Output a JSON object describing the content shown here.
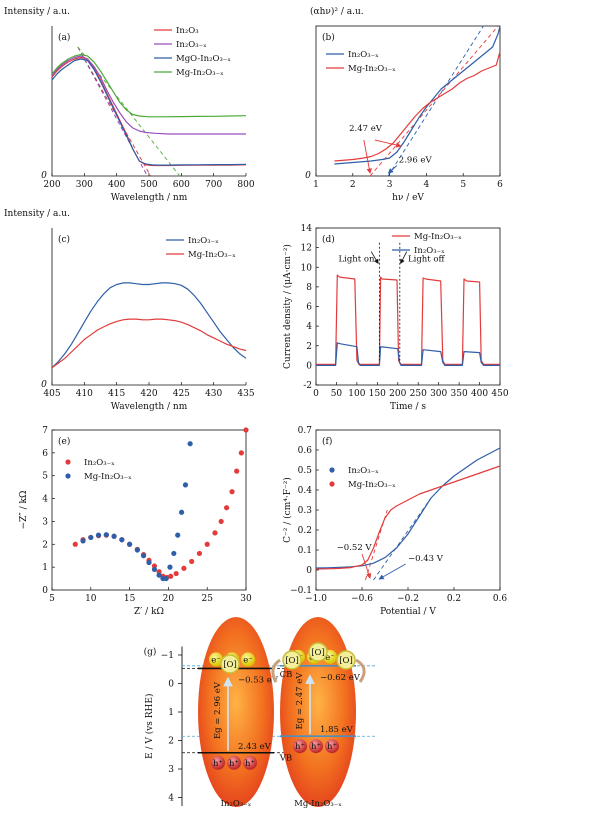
{
  "chart_data": [
    {
      "id": "a",
      "panel_label": "(a)",
      "type": "line",
      "ylabel": "Intensity / a.u.",
      "xlabel": "Wavelength / nm",
      "xlim": [
        200,
        800
      ],
      "xticks": [
        "200",
        "300",
        "400",
        "500",
        "600",
        "700",
        "800"
      ],
      "yticks": [
        "0"
      ],
      "legend_position": "top-right",
      "series": [
        {
          "name": "In2O3",
          "color": "#e33b3b",
          "x": [
            200,
            215,
            230,
            250,
            270,
            290,
            310,
            330,
            350,
            370,
            390,
            410,
            430,
            450,
            470,
            490,
            510,
            530,
            560,
            600,
            650,
            700,
            750,
            800
          ],
          "y": [
            0.66,
            0.7,
            0.73,
            0.76,
            0.78,
            0.79,
            0.78,
            0.72,
            0.64,
            0.55,
            0.46,
            0.37,
            0.28,
            0.18,
            0.1,
            0.075,
            0.07,
            0.07,
            0.07,
            0.071,
            0.072,
            0.072,
            0.073,
            0.075
          ]
        },
        {
          "name": "In2O3-x",
          "color": "#9b4fbf",
          "x": [
            200,
            215,
            230,
            250,
            270,
            290,
            310,
            330,
            350,
            370,
            390,
            410,
            430,
            450,
            470,
            490,
            520,
            560,
            600,
            650,
            700,
            750,
            800
          ],
          "y": [
            0.67,
            0.71,
            0.74,
            0.77,
            0.79,
            0.8,
            0.78,
            0.73,
            0.66,
            0.57,
            0.49,
            0.42,
            0.36,
            0.32,
            0.3,
            0.29,
            0.285,
            0.28,
            0.28,
            0.28,
            0.28,
            0.28,
            0.28
          ]
        },
        {
          "name": "MgO-In2O3-x",
          "color": "#2e5fa8",
          "x": [
            200,
            215,
            230,
            250,
            270,
            290,
            310,
            330,
            350,
            370,
            390,
            410,
            430,
            450,
            470,
            490,
            510,
            530,
            560,
            600,
            650,
            700,
            750,
            800
          ],
          "y": [
            0.64,
            0.68,
            0.71,
            0.74,
            0.77,
            0.78,
            0.77,
            0.71,
            0.63,
            0.54,
            0.45,
            0.36,
            0.27,
            0.18,
            0.1,
            0.08,
            0.074,
            0.073,
            0.073,
            0.074,
            0.075,
            0.076,
            0.076,
            0.077
          ]
        },
        {
          "name": "Mg-In2O3-x",
          "color": "#4faa3a",
          "x": [
            200,
            215,
            230,
            250,
            270,
            290,
            310,
            330,
            350,
            370,
            390,
            410,
            430,
            450,
            470,
            500,
            540,
            600,
            650,
            700,
            750,
            800
          ],
          "y": [
            0.68,
            0.72,
            0.75,
            0.78,
            0.8,
            0.81,
            0.8,
            0.76,
            0.7,
            0.63,
            0.56,
            0.49,
            0.44,
            0.41,
            0.4,
            0.395,
            0.395,
            0.396,
            0.397,
            0.398,
            0.4,
            0.402
          ]
        }
      ],
      "tangents": [
        {
          "color": "#c03a3a",
          "x": [
            280,
            505
          ],
          "y": [
            0.86,
            0.0
          ]
        },
        {
          "color": "#8a3fae",
          "x": [
            280,
            495
          ],
          "y": [
            0.86,
            0.0
          ]
        },
        {
          "color": "#4faa3a",
          "x": [
            280,
            595
          ],
          "y": [
            0.86,
            0.0
          ]
        }
      ]
    },
    {
      "id": "b",
      "panel_label": "(b)",
      "type": "line",
      "ylabel": "(αhν)² / a.u.",
      "xlabel": "hν / eV",
      "xlim": [
        1,
        6
      ],
      "xticks": [
        "1",
        "2",
        "3",
        "4",
        "5",
        "6"
      ],
      "yticks": [
        "0"
      ],
      "legend_position": "top-left",
      "series": [
        {
          "name": "In2O3-x",
          "color": "#2e5fa8",
          "x": [
            1.5,
            2.0,
            2.5,
            2.8,
            3.0,
            3.2,
            3.4,
            3.6,
            3.8,
            4.0,
            4.2,
            4.4,
            4.6,
            4.8,
            5.0,
            5.2,
            5.4,
            5.6,
            5.8,
            5.95,
            6.0
          ],
          "y": [
            0.08,
            0.09,
            0.1,
            0.11,
            0.12,
            0.16,
            0.23,
            0.31,
            0.39,
            0.46,
            0.52,
            0.58,
            0.62,
            0.66,
            0.7,
            0.74,
            0.78,
            0.82,
            0.86,
            0.95,
            1.0
          ]
        },
        {
          "name": "Mg-In2O3-x",
          "color": "#e33b3b",
          "x": [
            1.5,
            2.0,
            2.3,
            2.5,
            2.7,
            2.9,
            3.1,
            3.3,
            3.5,
            3.7,
            3.9,
            4.1,
            4.3,
            4.5,
            4.7,
            4.9,
            5.1,
            5.3,
            5.5,
            5.7,
            5.9,
            6.0
          ],
          "y": [
            0.1,
            0.11,
            0.12,
            0.13,
            0.15,
            0.18,
            0.22,
            0.28,
            0.34,
            0.4,
            0.45,
            0.49,
            0.52,
            0.55,
            0.58,
            0.62,
            0.65,
            0.67,
            0.7,
            0.72,
            0.74,
            0.83
          ]
        }
      ],
      "tangents": [
        {
          "color": "#2e5fa8",
          "x": [
            2.96,
            5.55
          ],
          "y": [
            0.0,
            1.0
          ]
        },
        {
          "color": "#e33b3b",
          "x": [
            2.47,
            5.95
          ],
          "y": [
            0.0,
            1.0
          ]
        }
      ],
      "annotations": [
        "2.47 eV",
        "2.96 eV"
      ]
    },
    {
      "id": "c",
      "panel_label": "(c)",
      "type": "line",
      "ylabel": "Intensity / a.u.",
      "xlabel": "Wavelength / nm",
      "xlim": [
        405,
        435
      ],
      "xticks": [
        "405",
        "410",
        "415",
        "420",
        "425",
        "430",
        "435"
      ],
      "yticks": [
        "0"
      ],
      "legend_position": "top-right",
      "series": [
        {
          "name": "In2O3-x",
          "color": "#2e5fa8",
          "x": [
            405,
            406,
            407,
            408,
            409,
            410,
            411,
            412,
            413,
            414,
            415,
            416,
            417,
            418,
            419,
            420,
            421,
            422,
            423,
            424,
            425,
            426,
            427,
            428,
            429,
            430,
            431,
            432,
            433,
            434,
            435
          ],
          "y": [
            0.11,
            0.15,
            0.2,
            0.26,
            0.33,
            0.4,
            0.47,
            0.53,
            0.58,
            0.62,
            0.64,
            0.65,
            0.65,
            0.645,
            0.64,
            0.64,
            0.645,
            0.65,
            0.65,
            0.645,
            0.635,
            0.61,
            0.57,
            0.52,
            0.46,
            0.4,
            0.34,
            0.29,
            0.24,
            0.2,
            0.17
          ]
        },
        {
          "name": "Mg-In2O3-x",
          "color": "#e33b3b",
          "x": [
            405,
            406,
            407,
            408,
            409,
            410,
            411,
            412,
            413,
            414,
            415,
            416,
            417,
            418,
            419,
            420,
            421,
            422,
            423,
            424,
            425,
            426,
            427,
            428,
            429,
            430,
            431,
            432,
            433,
            434,
            435
          ],
          "y": [
            0.11,
            0.14,
            0.17,
            0.21,
            0.25,
            0.29,
            0.32,
            0.35,
            0.37,
            0.39,
            0.405,
            0.415,
            0.42,
            0.42,
            0.415,
            0.415,
            0.42,
            0.42,
            0.415,
            0.41,
            0.4,
            0.385,
            0.365,
            0.345,
            0.32,
            0.3,
            0.28,
            0.26,
            0.245,
            0.23,
            0.22
          ]
        }
      ]
    },
    {
      "id": "d",
      "panel_label": "(d)",
      "type": "line",
      "ylabel": "Current density / (μA·cm⁻²)",
      "xlabel": "Time / s",
      "xlim": [
        0,
        450
      ],
      "ylim": [
        -2,
        14
      ],
      "xticks": [
        "0",
        "50",
        "100",
        "150",
        "200",
        "250",
        "300",
        "350",
        "400",
        "450"
      ],
      "yticks": [
        "-2",
        "0",
        "2",
        "4",
        "6",
        "8",
        "10",
        "12",
        "14"
      ],
      "legend_position": "top-right",
      "series": [
        {
          "name": "Mg-In2O3-x",
          "color": "#e33b3b",
          "x": [
            0,
            48,
            52,
            58,
            95,
            100,
            105,
            155,
            158,
            162,
            198,
            202,
            208,
            258,
            262,
            268,
            305,
            310,
            315,
            358,
            362,
            368,
            400,
            404,
            410,
            450
          ],
          "y": [
            0.1,
            0.1,
            9.2,
            9.0,
            8.8,
            0.5,
            0.1,
            0.1,
            9.0,
            8.8,
            8.7,
            0.5,
            0.1,
            0.1,
            8.9,
            8.8,
            8.6,
            0.5,
            0.1,
            0.1,
            8.8,
            8.6,
            8.5,
            0.5,
            0.1,
            0.1
          ]
        },
        {
          "name": "In2O3-x",
          "color": "#2e5fa8",
          "x": [
            0,
            48,
            52,
            60,
            100,
            104,
            108,
            155,
            158,
            200,
            204,
            208,
            258,
            262,
            305,
            310,
            315,
            358,
            362,
            400,
            404,
            410,
            450
          ],
          "y": [
            0.0,
            0.0,
            2.3,
            2.2,
            1.9,
            0.3,
            0.0,
            0.0,
            1.9,
            1.7,
            0.3,
            0.0,
            0.0,
            1.6,
            1.4,
            0.3,
            0.0,
            0.0,
            1.4,
            1.3,
            0.3,
            0.0,
            0.0
          ]
        }
      ],
      "annotations": [
        "Light on",
        "Light off"
      ]
    },
    {
      "id": "e",
      "panel_label": "(e)",
      "type": "scatter",
      "ylabel": "−Z″ / kΩ",
      "xlabel": "Z′ / kΩ",
      "xlim": [
        5,
        30
      ],
      "ylim": [
        0,
        7
      ],
      "xticks": [
        "5",
        "10",
        "15",
        "20",
        "25",
        "30"
      ],
      "yticks": [
        "0",
        "1",
        "2",
        "3",
        "4",
        "5",
        "6",
        "7"
      ],
      "legend_position": "top-left",
      "series": [
        {
          "name": "In2O3-x",
          "color": "#e33b3b",
          "x": [
            8.0,
            9.0,
            10.0,
            11.0,
            12.0,
            13.0,
            14.0,
            15.0,
            16.0,
            16.8,
            17.5,
            18.2,
            18.8,
            19.3,
            19.8,
            20.3,
            21.0,
            22.0,
            23.0,
            24.0,
            25.0,
            26.0,
            26.8,
            27.5,
            28.2,
            28.8,
            29.4,
            30.0
          ],
          "y": [
            2.0,
            2.2,
            2.3,
            2.38,
            2.4,
            2.35,
            2.2,
            2.0,
            1.78,
            1.55,
            1.3,
            1.05,
            0.8,
            0.6,
            0.55,
            0.6,
            0.72,
            0.95,
            1.25,
            1.6,
            2.0,
            2.5,
            3.0,
            3.6,
            4.3,
            5.2,
            6.0,
            7.0
          ]
        },
        {
          "name": "Mg-In2O3-x",
          "color": "#2e5fa8",
          "x": [
            9.0,
            10.0,
            11.0,
            12.0,
            13.0,
            14.0,
            15.0,
            16.0,
            16.8,
            17.5,
            18.2,
            18.8,
            19.3,
            19.7,
            20.2,
            20.7,
            21.2,
            21.7,
            22.2,
            22.8
          ],
          "y": [
            2.15,
            2.3,
            2.4,
            2.42,
            2.35,
            2.2,
            2.0,
            1.75,
            1.5,
            1.2,
            0.9,
            0.65,
            0.5,
            0.5,
            1.0,
            1.6,
            2.4,
            3.4,
            4.6,
            6.4
          ]
        }
      ]
    },
    {
      "id": "f",
      "panel_label": "(f)",
      "type": "line",
      "ylabel": "C⁻² / (cm⁴·F⁻²)",
      "xlabel": "Potential / V",
      "xlim": [
        -1.0,
        0.6
      ],
      "ylim": [
        -0.1,
        0.7
      ],
      "xticks": [
        "−1.0",
        "−0.6",
        "−0.2",
        "0.2",
        "0.6"
      ],
      "yticks": [
        "−0.1",
        "0",
        "0.1",
        "0.2",
        "0.3",
        "0.4",
        "0.5",
        "0.6",
        "0.7"
      ],
      "legend_position": "top-left",
      "series": [
        {
          "name": "In2O3-x",
          "color": "#2e5fa8",
          "x": [
            -1.0,
            -0.9,
            -0.8,
            -0.7,
            -0.6,
            -0.5,
            -0.4,
            -0.3,
            -0.2,
            -0.1,
            0.0,
            0.1,
            0.2,
            0.3,
            0.4,
            0.5,
            0.6
          ],
          "y": [
            0.01,
            0.011,
            0.013,
            0.016,
            0.021,
            0.034,
            0.062,
            0.11,
            0.18,
            0.27,
            0.36,
            0.42,
            0.47,
            0.51,
            0.55,
            0.58,
            0.61
          ]
        },
        {
          "name": "Mg-In2O3-x",
          "color": "#e33b3b",
          "x": [
            -1.0,
            -0.9,
            -0.8,
            -0.7,
            -0.6,
            -0.55,
            -0.5,
            -0.45,
            -0.4,
            -0.35,
            -0.3,
            -0.2,
            -0.1,
            0.0,
            0.1,
            0.2,
            0.3,
            0.4,
            0.5,
            0.6
          ],
          "y": [
            0.005,
            0.006,
            0.008,
            0.012,
            0.025,
            0.05,
            0.11,
            0.19,
            0.26,
            0.3,
            0.32,
            0.35,
            0.38,
            0.4,
            0.42,
            0.44,
            0.46,
            0.48,
            0.5,
            0.52
          ]
        }
      ],
      "tangents": [
        {
          "color": "#e33b3b",
          "x": [
            -0.57,
            -0.38
          ],
          "y": [
            -0.05,
            0.3
          ]
        },
        {
          "color": "#2e5fa8",
          "x": [
            -0.5,
            0.0
          ],
          "y": [
            -0.05,
            0.36
          ]
        }
      ],
      "annotations": [
        "−0.52 V",
        "−0.43 V"
      ]
    }
  ],
  "panel_g": {
    "panel_label": "(g)",
    "ylabel": "E / V (vs RHE)",
    "yticks": [
      "−1",
      "0",
      "1",
      "2",
      "3",
      "4"
    ],
    "materials": [
      {
        "name": "In2O3-x",
        "Eg": "Eg = 2.96 eV",
        "cb": "−0.53 eV",
        "vb": "2.43 eV"
      },
      {
        "name": "Mg-In2O3-x",
        "Eg": "Eg = 2.47 eV",
        "cb": "−0.62 eV",
        "vb": "1.85 eV"
      }
    ],
    "cb_label": "CB",
    "vb_label": "VB",
    "oxygen_label": "[O]",
    "electron": "e⁻",
    "hole": "h⁺"
  }
}
